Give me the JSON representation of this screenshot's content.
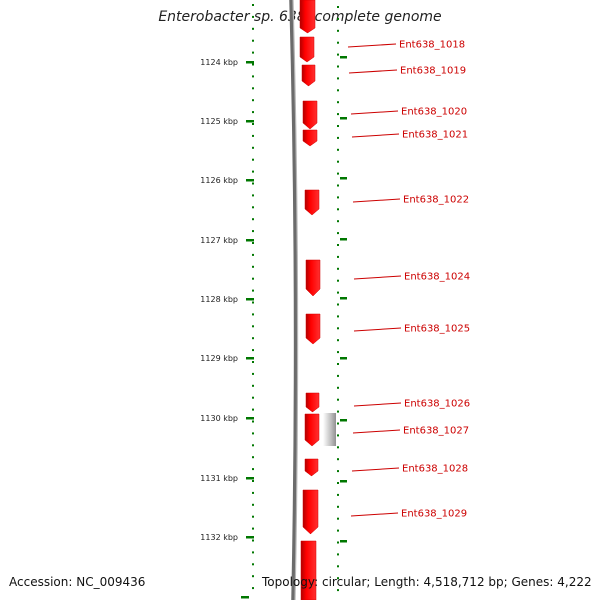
{
  "title": "Enterobacter sp. 638, complete genome",
  "accession_text": "Accession: NC_009436",
  "summary_text": "Topology: circular; Length: 4,518,712 bp; Genes: 4,222",
  "colors": {
    "gene": "#ff0000",
    "gene_dark": "#b00000",
    "backbone": "#808080",
    "tick": "#007700",
    "label": "#cc0000",
    "feature_gray": "#c0c0c0"
  },
  "scale_labels": [
    "1124 kbp",
    "1125 kbp",
    "1126 kbp",
    "1127 kbp",
    "1128 kbp",
    "1129 kbp",
    "1130 kbp",
    "1131 kbp",
    "1132 kbp"
  ],
  "genes": [
    {
      "name": "Ent638_1018"
    },
    {
      "name": "Ent638_1019"
    },
    {
      "name": "Ent638_1020"
    },
    {
      "name": "Ent638_1021"
    },
    {
      "name": "Ent638_1022"
    },
    {
      "name": "Ent638_1024"
    },
    {
      "name": "Ent638_1025"
    },
    {
      "name": "Ent638_1026"
    },
    {
      "name": "Ent638_1027"
    },
    {
      "name": "Ent638_1028"
    },
    {
      "name": "Ent638_1029"
    }
  ]
}
